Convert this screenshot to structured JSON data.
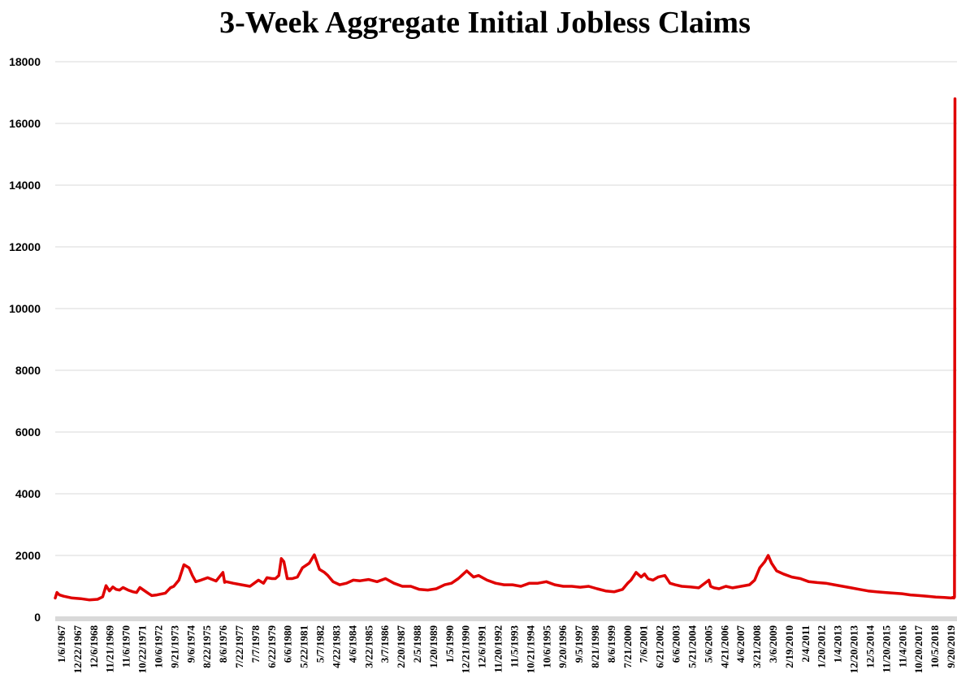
{
  "chart_data": {
    "type": "line",
    "title": "3-Week Aggregate Initial Jobless Claims",
    "xlabel": "",
    "ylabel": "",
    "ylim": [
      0,
      18000
    ],
    "yticks": [
      0,
      2000,
      4000,
      6000,
      8000,
      10000,
      12000,
      14000,
      16000,
      18000
    ],
    "grid": true,
    "legend": "none",
    "colors": {
      "line": "#e00000",
      "grid": "#d9d9d9"
    },
    "x_tick_labels": [
      "1/6/1967",
      "12/22/1967",
      "12/6/1968",
      "11/21/1969",
      "11/6/1970",
      "10/22/1971",
      "10/6/1972",
      "9/21/1973",
      "9/6/1974",
      "8/22/1975",
      "8/6/1976",
      "7/22/1977",
      "7/7/1978",
      "6/22/1979",
      "6/6/1980",
      "5/22/1981",
      "5/7/1982",
      "4/22/1983",
      "4/6/1984",
      "3/22/1985",
      "3/7/1986",
      "2/20/1987",
      "2/5/1988",
      "1/20/1989",
      "1/5/1990",
      "12/21/1990",
      "12/6/1991",
      "11/20/1992",
      "11/5/1993",
      "10/21/1994",
      "10/6/1995",
      "9/20/1996",
      "9/5/1997",
      "8/21/1998",
      "8/6/1999",
      "7/21/2000",
      "7/6/2001",
      "6/21/2002",
      "6/6/2003",
      "5/21/2004",
      "5/6/2005",
      "4/21/2006",
      "4/6/2007",
      "3/21/2008",
      "3/6/2009",
      "2/19/2010",
      "2/4/2011",
      "1/20/2012",
      "1/4/2013",
      "12/20/2013",
      "12/5/2014",
      "11/20/2015",
      "11/4/2016",
      "10/20/2017",
      "10/5/2018",
      "9/20/2019"
    ],
    "x_range_years": [
      1967.0,
      2020.25
    ],
    "series": [
      {
        "x": [
          1967.0,
          1967.1,
          1967.25,
          1967.5,
          1968.0,
          1968.5,
          1969.0,
          1969.5,
          1969.8,
          1970.0,
          1970.2,
          1970.4,
          1970.6,
          1970.8,
          1971.0,
          1971.3,
          1971.6,
          1971.8,
          1972.0,
          1972.5,
          1972.7,
          1973.0,
          1973.5,
          1973.8,
          1974.0,
          1974.3,
          1974.6,
          1974.9,
          1975.1,
          1975.3,
          1975.6,
          1976.0,
          1976.5,
          1976.9,
          1977.0,
          1977.1,
          1977.5,
          1978.0,
          1978.5,
          1979.0,
          1979.3,
          1979.5,
          1979.8,
          1980.0,
          1980.2,
          1980.35,
          1980.5,
          1980.7,
          1981.0,
          1981.3,
          1981.6,
          1982.0,
          1982.3,
          1982.6,
          1982.9,
          1983.1,
          1983.4,
          1983.8,
          1984.2,
          1984.6,
          1985.0,
          1985.5,
          1986.0,
          1986.5,
          1987.0,
          1987.5,
          1988.0,
          1988.5,
          1989.0,
          1989.5,
          1990.0,
          1990.4,
          1990.8,
          1991.0,
          1991.3,
          1991.7,
          1992.0,
          1992.5,
          1993.0,
          1993.5,
          1994.0,
          1994.5,
          1995.0,
          1995.5,
          1996.0,
          1996.5,
          1997.0,
          1997.5,
          1998.0,
          1998.5,
          1999.0,
          1999.5,
          2000.0,
          2000.5,
          2000.8,
          2001.0,
          2001.3,
          2001.6,
          2001.8,
          2002.0,
          2002.3,
          2002.6,
          2003.0,
          2003.3,
          2003.6,
          2004.0,
          2004.5,
          2005.0,
          2005.6,
          2005.7,
          2005.9,
          2006.2,
          2006.6,
          2007.0,
          2007.5,
          2008.0,
          2008.3,
          2008.6,
          2008.9,
          2009.1,
          2009.3,
          2009.6,
          2010.0,
          2010.5,
          2011.0,
          2011.5,
          2012.0,
          2012.5,
          2013.0,
          2013.5,
          2014.0,
          2014.5,
          2015.0,
          2015.5,
          2016.0,
          2016.5,
          2017.0,
          2017.5,
          2018.0,
          2018.5,
          2019.0,
          2019.5,
          2019.9,
          2020.0,
          2020.07,
          2020.1,
          2020.13
        ],
        "values": [
          620,
          800,
          720,
          680,
          620,
          600,
          560,
          580,
          660,
          1020,
          850,
          980,
          900,
          880,
          960,
          880,
          820,
          800,
          960,
          770,
          700,
          720,
          780,
          950,
          1000,
          1200,
          1700,
          1600,
          1350,
          1150,
          1200,
          1280,
          1170,
          1450,
          1130,
          1150,
          1100,
          1050,
          1000,
          1200,
          1100,
          1280,
          1250,
          1250,
          1350,
          1900,
          1800,
          1250,
          1250,
          1300,
          1600,
          1750,
          2020,
          1550,
          1450,
          1350,
          1150,
          1050,
          1100,
          1200,
          1180,
          1220,
          1150,
          1250,
          1100,
          1000,
          1000,
          900,
          880,
          920,
          1050,
          1100,
          1250,
          1350,
          1500,
          1300,
          1350,
          1200,
          1100,
          1050,
          1050,
          1000,
          1100,
          1100,
          1150,
          1050,
          1000,
          1000,
          970,
          1000,
          920,
          850,
          820,
          900,
          1100,
          1200,
          1450,
          1300,
          1400,
          1250,
          1200,
          1300,
          1350,
          1100,
          1050,
          1000,
          980,
          950,
          1200,
          1000,
          950,
          920,
          1000,
          950,
          1000,
          1050,
          1200,
          1600,
          1800,
          2000,
          1750,
          1500,
          1400,
          1300,
          1250,
          1150,
          1120,
          1100,
          1050,
          1000,
          950,
          900,
          850,
          820,
          800,
          780,
          760,
          720,
          700,
          680,
          650,
          640,
          620,
          640,
          620,
          650,
          16800
        ]
      }
    ]
  }
}
